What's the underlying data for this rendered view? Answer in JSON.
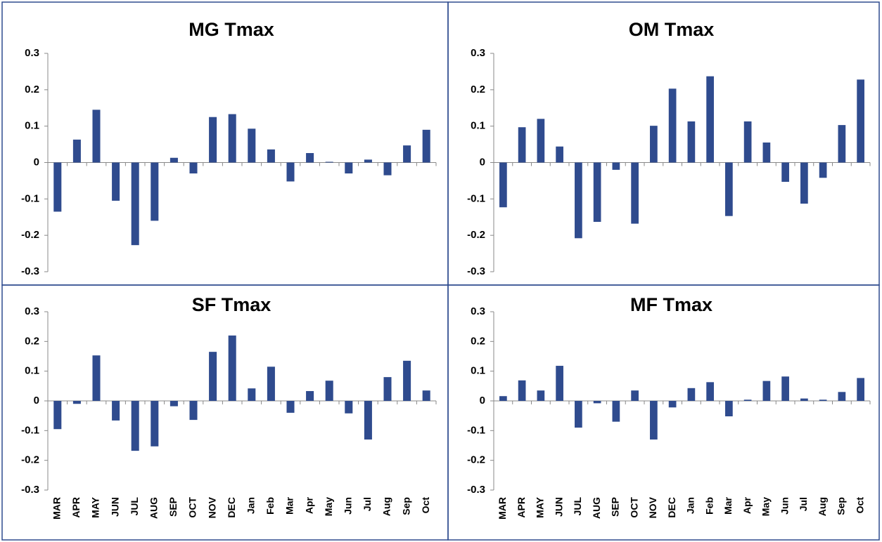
{
  "chart_data": [
    {
      "type": "bar",
      "title": "MG Tmax",
      "categories": [
        null,
        null,
        null,
        null,
        null,
        null,
        null,
        null,
        null,
        null,
        null,
        null,
        null,
        null,
        null,
        null,
        null,
        null,
        null,
        null
      ],
      "values": [
        -0.135,
        0.063,
        0.145,
        -0.105,
        -0.227,
        -0.16,
        0.013,
        -0.03,
        0.125,
        0.133,
        0.093,
        0.036,
        -0.052,
        0.026,
        0.002,
        -0.03,
        0.008,
        -0.035,
        0.047,
        0.09
      ],
      "color": "#2f4b8e",
      "ylim": [
        -0.3,
        0.3
      ],
      "yticks": [
        -0.3,
        -0.2,
        -0.1,
        0,
        0.1,
        0.2,
        0.3
      ]
    },
    {
      "type": "bar",
      "title": "OM Tmax",
      "categories": [
        null,
        null,
        null,
        null,
        null,
        null,
        null,
        null,
        null,
        null,
        null,
        null,
        null,
        null,
        null,
        null,
        null,
        null,
        null,
        null
      ],
      "values": [
        -0.123,
        0.097,
        0.12,
        0.044,
        -0.208,
        -0.163,
        -0.02,
        -0.168,
        0.101,
        0.203,
        0.113,
        0.237,
        -0.147,
        0.113,
        0.055,
        -0.053,
        -0.113,
        -0.042,
        0.103,
        0.228
      ],
      "color": "#2f4b8e",
      "ylim": [
        -0.3,
        0.3
      ],
      "yticks": [
        -0.3,
        -0.2,
        -0.1,
        0,
        0.1,
        0.2,
        0.3
      ]
    },
    {
      "type": "bar",
      "title": "SF Tmax",
      "categories": [
        "MAR",
        "APR",
        "MAY",
        "JUN",
        "JUL",
        "AUG",
        "SEP",
        "OCT",
        "NOV",
        "DEC",
        "Jan",
        "Feb",
        "Mar",
        "Apr",
        "May",
        "Jun",
        "Jul",
        "Aug",
        "Sep",
        "Oct"
      ],
      "values": [
        -0.095,
        -0.01,
        0.153,
        -0.066,
        -0.168,
        -0.153,
        -0.018,
        -0.064,
        0.165,
        0.22,
        0.042,
        0.115,
        -0.04,
        0.033,
        0.068,
        -0.042,
        -0.13,
        0.08,
        0.135,
        0.035
      ],
      "color": "#2f4b8e",
      "ylim": [
        -0.3,
        0.3
      ],
      "yticks": [
        -0.3,
        -0.2,
        -0.1,
        0,
        0.1,
        0.2,
        0.3
      ]
    },
    {
      "type": "bar",
      "title": "MF Tmax",
      "categories": [
        "MAR",
        "APR",
        "MAY",
        "JUN",
        "JUL",
        "AUG",
        "SEP",
        "OCT",
        "NOV",
        "DEC",
        "Jan",
        "Feb",
        "Mar",
        "Apr",
        "May",
        "Jun",
        "Jul",
        "Aug",
        "Sep",
        "Oct"
      ],
      "values": [
        0.016,
        0.069,
        0.035,
        0.118,
        -0.09,
        -0.008,
        -0.07,
        0.035,
        -0.13,
        -0.022,
        0.043,
        0.063,
        -0.052,
        0.004,
        0.067,
        0.082,
        0.008,
        0.004,
        0.03,
        0.077
      ],
      "color": "#2f4b8e",
      "ylim": [
        -0.3,
        0.3
      ],
      "yticks": [
        -0.3,
        -0.2,
        -0.1,
        0,
        0.1,
        0.2,
        0.3
      ]
    }
  ]
}
